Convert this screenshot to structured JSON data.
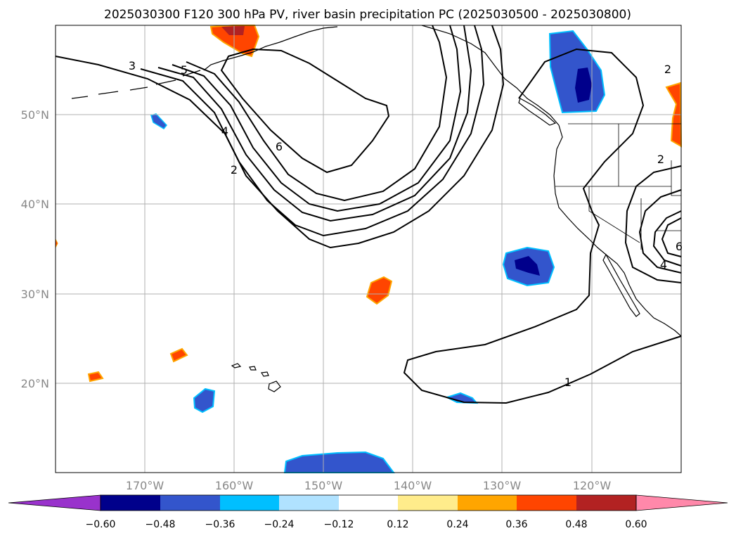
{
  "title": "2025030300 F120 300 hPa PV, river basin precipitation PC (2025030500 - 2025030800)",
  "map": {
    "projection": "Mercator",
    "lon_range": [
      -180,
      -110
    ],
    "lat_range": [
      10,
      60
    ],
    "gridlines": true,
    "lon_labels": [
      "170°W",
      "160°W",
      "150°W",
      "140°W",
      "130°W",
      "120°W"
    ],
    "lat_labels": [
      "50°N",
      "40°N",
      "30°N",
      "20°N"
    ],
    "pv_contour_labels": [
      "3",
      "5",
      "4",
      "2",
      "6",
      "2",
      "2",
      "4",
      "1",
      "6"
    ]
  },
  "colorbar": {
    "ticks": [
      "−0.60",
      "−0.48",
      "−0.36",
      "−0.24",
      "−0.12",
      "0.12",
      "0.24",
      "0.36",
      "0.48",
      "0.60"
    ],
    "colors": [
      "#9932cc",
      "#00008b",
      "#3355cc",
      "#00bfff",
      "#b0e2ff",
      "#ffffff",
      "#ffec8b",
      "#ffa500",
      "#ff4500",
      "#b22222",
      "#ff88aa"
    ],
    "extend": "both"
  }
}
